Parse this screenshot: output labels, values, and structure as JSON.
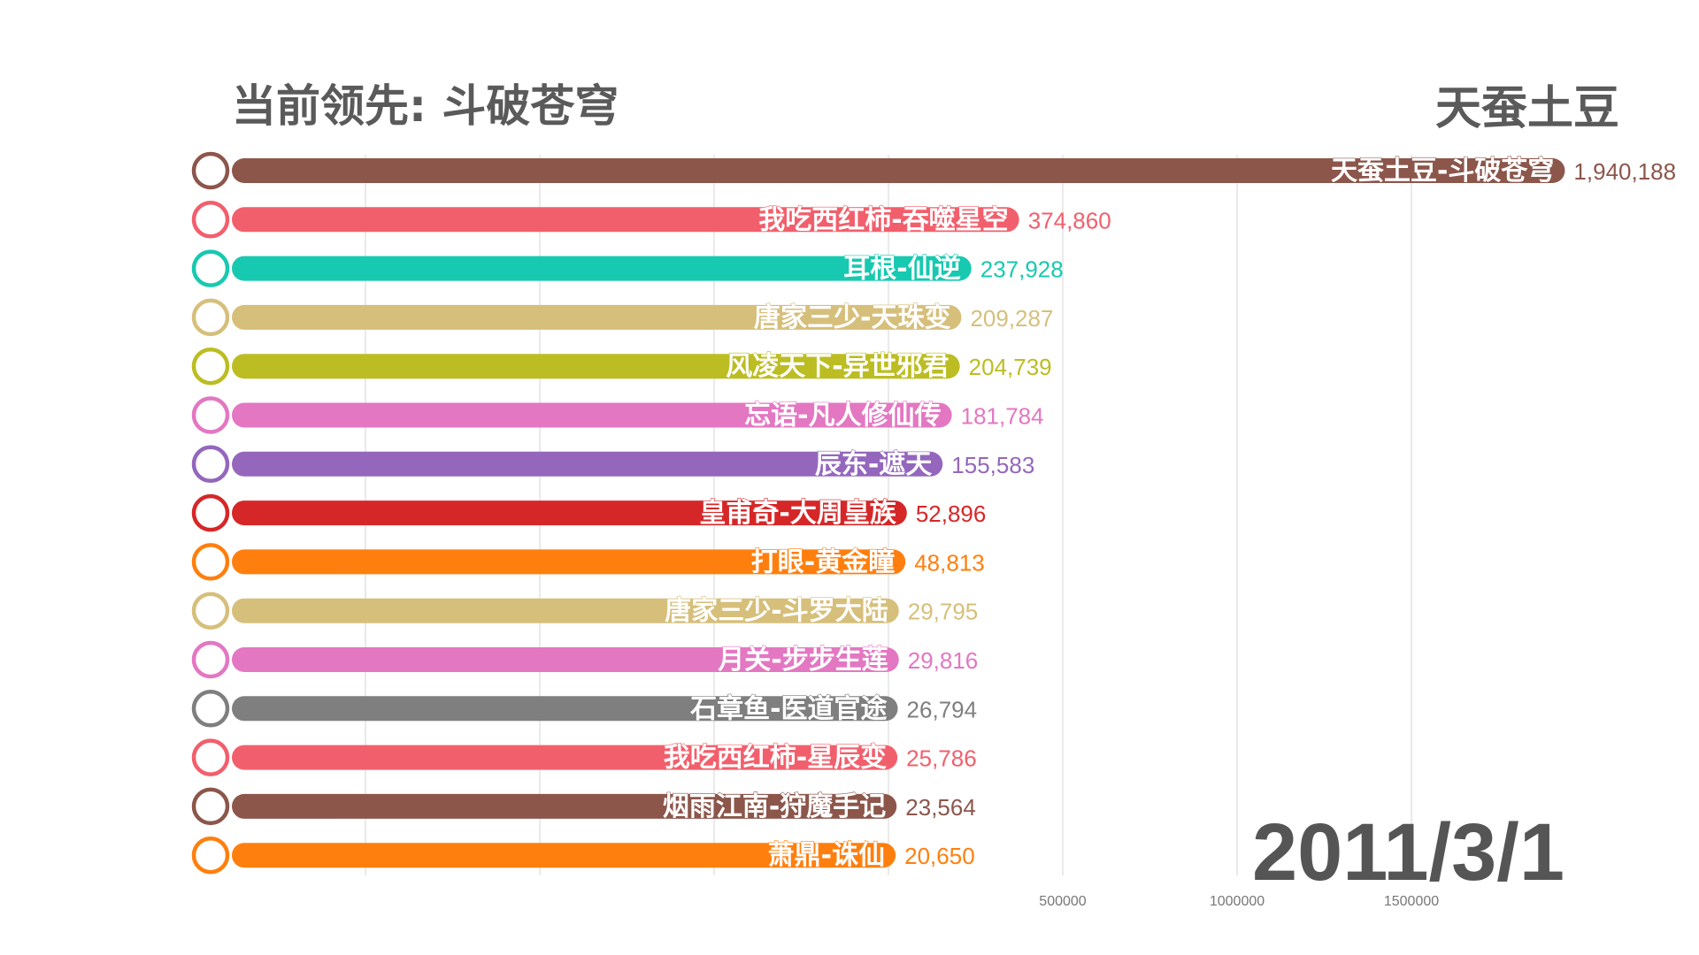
{
  "header": {
    "title": "当前领先: 斗破苍穹",
    "leader_author": "天蚕土豆"
  },
  "date_label": "2011/3/1",
  "chart_data": {
    "type": "bar",
    "orientation": "horizontal",
    "title": "当前领先: 斗破苍穹",
    "xlabel": "",
    "ylabel": "",
    "x_ticks": [
      500000,
      1000000,
      1500000
    ],
    "grid": true,
    "categories": [
      "天蚕土豆-斗破苍穹",
      "我吃西红柿-吞噬星空",
      "耳根-仙逆",
      "唐家三少-天珠变",
      "风凌天下-异世邪君",
      "忘语-凡人修仙传",
      "辰东-遮天",
      "皇甫奇-大周皇族",
      "打眼-黄金瞳",
      "唐家三少-斗罗大陆",
      "月关-步步生莲",
      "石章鱼-医道官途",
      "我吃西红柿-星辰变",
      "烟雨江南-狩魔手记",
      "萧鼎-诛仙"
    ],
    "values": [
      1940188,
      374860,
      237928,
      209287,
      204739,
      181784,
      155583,
      52896,
      48813,
      29795,
      29816,
      26794,
      25786,
      23564,
      20650
    ],
    "value_labels": [
      "1,940,188",
      "374,860",
      "237,928",
      "209,287",
      "204,739",
      "181,784",
      "155,583",
      "52,896",
      "48,813",
      "29,795",
      "29,816",
      "26,794",
      "25,786",
      "23,564",
      "20,650"
    ],
    "colors": [
      "#8c564b",
      "#f25f6c",
      "#17c9b0",
      "#d6bf7b",
      "#bcbd22",
      "#e377c2",
      "#9467bd",
      "#d62728",
      "#ff7f0e",
      "#d6bf7b",
      "#e377c2",
      "#7f7f7f",
      "#f25f6c",
      "#8c564b",
      "#ff7f0e"
    ]
  }
}
